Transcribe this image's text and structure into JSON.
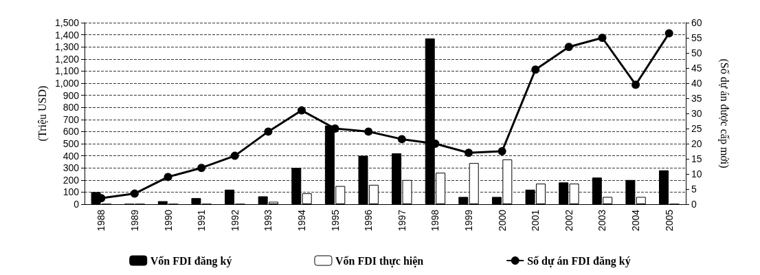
{
  "chart_data": {
    "type": "bar",
    "ylabel": "(Triệu USD)",
    "y2label": "(Số dự án được cấp mới)",
    "categories": [
      "1988",
      "1989",
      "1990",
      "1991",
      "1992",
      "1993",
      "1994",
      "1995",
      "1996",
      "1997",
      "1998",
      "1999",
      "2000",
      "2001",
      "2002",
      "2003",
      "2004",
      "2005"
    ],
    "series": [
      {
        "name": "Vốn FDI đăng ký",
        "color": "#000000",
        "values": [
          100,
          0,
          25,
          50,
          120,
          65,
          300,
          650,
          400,
          420,
          1370,
          60,
          60,
          120,
          180,
          220,
          200,
          280
        ]
      },
      {
        "name": "Vốn FDI thực hiện",
        "color": "#ffffff",
        "values": [
          0,
          0,
          0,
          0,
          0,
          20,
          90,
          150,
          160,
          200,
          260,
          340,
          370,
          170,
          170,
          60,
          60,
          0
        ]
      },
      {
        "name": "Số dự án FDI đăng ký",
        "type": "line",
        "axis": "y2",
        "color": "#000000",
        "marker": "circle",
        "values": [
          2,
          3.5,
          9,
          12,
          16,
          24,
          31,
          25,
          24,
          21.5,
          20,
          17,
          17.5,
          44.5,
          52,
          55,
          39.5,
          56.5
        ]
      }
    ],
    "ylim": [
      0,
      1500
    ],
    "yticks": [
      0,
      100,
      200,
      300,
      400,
      500,
      600,
      700,
      800,
      900,
      {
        "value": 1000,
        "label": "1,000"
      },
      {
        "value": 1100,
        "label": "1,100"
      },
      {
        "value": 1200,
        "label": "1,200"
      },
      {
        "value": 1300,
        "label": "1,300"
      },
      {
        "value": 1400,
        "label": "1,400"
      },
      {
        "value": 1500,
        "label": "1,500"
      }
    ],
    "y2lim": [
      0,
      60
    ],
    "y2ticks": [
      0,
      5,
      10,
      15,
      20,
      25,
      30,
      35,
      40,
      45,
      50,
      55,
      60
    ],
    "grid": "y",
    "legend": "bottom"
  }
}
